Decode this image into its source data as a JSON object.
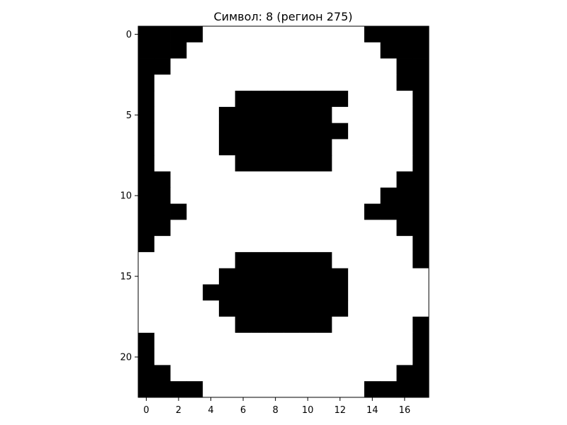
{
  "chart_data": {
    "type": "heatmap",
    "title": "Символ: 8 (регион 275)",
    "xlabel": "",
    "ylabel": "",
    "xlim": [
      -0.5,
      17.5
    ],
    "ylim": [
      22.5,
      -0.5
    ],
    "x_ticks": [
      "0",
      "2",
      "4",
      "6",
      "8",
      "10",
      "12",
      "14",
      "16"
    ],
    "y_ticks": [
      "0",
      "5",
      "10",
      "15",
      "20"
    ],
    "colormap": {
      "0": "#000000",
      "1": "#ffffff"
    },
    "grid": false,
    "values": [
      [
        0,
        0,
        0,
        0,
        1,
        1,
        1,
        1,
        1,
        1,
        1,
        1,
        1,
        1,
        0,
        0,
        0,
        0
      ],
      [
        0,
        0,
        0,
        1,
        1,
        1,
        1,
        1,
        1,
        1,
        1,
        1,
        1,
        1,
        1,
        0,
        0,
        0
      ],
      [
        0,
        0,
        1,
        1,
        1,
        1,
        1,
        1,
        1,
        1,
        1,
        1,
        1,
        1,
        1,
        1,
        0,
        0
      ],
      [
        0,
        1,
        1,
        1,
        1,
        1,
        1,
        1,
        1,
        1,
        1,
        1,
        1,
        1,
        1,
        1,
        0,
        0
      ],
      [
        0,
        1,
        1,
        1,
        1,
        1,
        0,
        0,
        0,
        0,
        0,
        0,
        0,
        1,
        1,
        1,
        1,
        0
      ],
      [
        0,
        1,
        1,
        1,
        1,
        0,
        0,
        0,
        0,
        0,
        0,
        0,
        1,
        1,
        1,
        1,
        1,
        0
      ],
      [
        0,
        1,
        1,
        1,
        1,
        0,
        0,
        0,
        0,
        0,
        0,
        0,
        0,
        1,
        1,
        1,
        1,
        0
      ],
      [
        0,
        1,
        1,
        1,
        1,
        0,
        0,
        0,
        0,
        0,
        0,
        0,
        1,
        1,
        1,
        1,
        1,
        0
      ],
      [
        0,
        1,
        1,
        1,
        1,
        1,
        0,
        0,
        0,
        0,
        0,
        0,
        1,
        1,
        1,
        1,
        1,
        0
      ],
      [
        0,
        0,
        1,
        1,
        1,
        1,
        1,
        1,
        1,
        1,
        1,
        1,
        1,
        1,
        1,
        1,
        0,
        0
      ],
      [
        0,
        0,
        1,
        1,
        1,
        1,
        1,
        1,
        1,
        1,
        1,
        1,
        1,
        1,
        1,
        0,
        0,
        0
      ],
      [
        0,
        0,
        0,
        1,
        1,
        1,
        1,
        1,
        1,
        1,
        1,
        1,
        1,
        1,
        0,
        0,
        0,
        0
      ],
      [
        0,
        0,
        1,
        1,
        1,
        1,
        1,
        1,
        1,
        1,
        1,
        1,
        1,
        1,
        1,
        1,
        0,
        0
      ],
      [
        0,
        1,
        1,
        1,
        1,
        1,
        1,
        1,
        1,
        1,
        1,
        1,
        1,
        1,
        1,
        1,
        1,
        0
      ],
      [
        1,
        1,
        1,
        1,
        1,
        1,
        0,
        0,
        0,
        0,
        0,
        0,
        1,
        1,
        1,
        1,
        1,
        0
      ],
      [
        1,
        1,
        1,
        1,
        1,
        0,
        0,
        0,
        0,
        0,
        0,
        0,
        0,
        1,
        1,
        1,
        1,
        1
      ],
      [
        1,
        1,
        1,
        1,
        0,
        0,
        0,
        0,
        0,
        0,
        0,
        0,
        0,
        1,
        1,
        1,
        1,
        1
      ],
      [
        1,
        1,
        1,
        1,
        1,
        0,
        0,
        0,
        0,
        0,
        0,
        0,
        0,
        1,
        1,
        1,
        1,
        1
      ],
      [
        1,
        1,
        1,
        1,
        1,
        1,
        0,
        0,
        0,
        0,
        0,
        0,
        1,
        1,
        1,
        1,
        1,
        0
      ],
      [
        0,
        1,
        1,
        1,
        1,
        1,
        1,
        1,
        1,
        1,
        1,
        1,
        1,
        1,
        1,
        1,
        1,
        0
      ],
      [
        0,
        1,
        1,
        1,
        1,
        1,
        1,
        1,
        1,
        1,
        1,
        1,
        1,
        1,
        1,
        1,
        1,
        0
      ],
      [
        0,
        0,
        1,
        1,
        1,
        1,
        1,
        1,
        1,
        1,
        1,
        1,
        1,
        1,
        1,
        1,
        0,
        0
      ],
      [
        0,
        0,
        0,
        0,
        1,
        1,
        1,
        1,
        1,
        1,
        1,
        1,
        1,
        1,
        0,
        0,
        0,
        0
      ]
    ]
  }
}
